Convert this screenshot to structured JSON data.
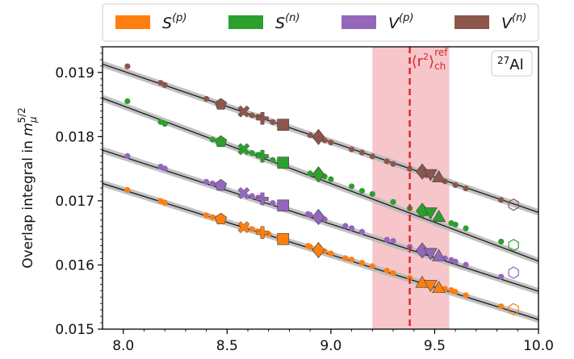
{
  "chart_data": {
    "type": "scatter",
    "title": "",
    "xlabel": "",
    "ylabel": "Overlap integral in m_μ^{5/2}",
    "ylabel_parts": {
      "main": "Overlap integral in ",
      "base": "m",
      "sub": "μ",
      "sup": "5/2"
    },
    "xlim": [
      7.9,
      10.0
    ],
    "ylim": [
      0.015,
      0.0194
    ],
    "xticks": [
      8.0,
      8.5,
      9.0,
      9.5,
      10.0
    ],
    "xtick_labels": [
      "8.0",
      "8.5",
      "9.0",
      "9.5",
      "10.0"
    ],
    "yticks": [
      0.015,
      0.016,
      0.017,
      0.018,
      0.019
    ],
    "ytick_labels": [
      "0.015",
      "0.016",
      "0.017",
      "0.018",
      "0.019"
    ],
    "grid": false,
    "legend_position": "top-outside",
    "nucleus_label": {
      "sup": "27",
      "text": "Al"
    },
    "reference": {
      "x": 9.38,
      "band": [
        9.2,
        9.57
      ],
      "label_base": "⟨r",
      "label_sup": "2",
      "label_close": "⟩",
      "label_sub": "ch",
      "label_sup2": "ref",
      "line_color": "#d62728",
      "band_color": "#f0a0a6"
    },
    "series": [
      {
        "name": "S^(p)",
        "legend_base": "S",
        "legend_sup": "(p)",
        "color": "#ff7f0e",
        "fit": [
          [
            7.9,
            0.01727
          ],
          [
            10.0,
            0.01515
          ]
        ],
        "small_x": [
          8.02,
          8.18,
          8.2,
          8.4,
          8.43,
          8.47,
          8.58,
          8.62,
          8.65,
          8.68,
          8.7,
          8.75,
          8.89,
          8.9,
          8.97,
          9.0,
          9.07,
          9.1,
          9.15,
          9.2,
          9.27,
          9.3,
          9.38,
          9.46,
          9.55,
          9.58,
          9.6,
          9.65,
          9.82
        ],
        "small_y": [
          0.017169,
          0.016998,
          0.016971,
          0.016773,
          0.016744,
          0.016712,
          0.016589,
          0.01656,
          0.016523,
          0.016493,
          0.016483,
          0.016426,
          0.016298,
          0.016284,
          0.016213,
          0.016179,
          0.016107,
          0.016084,
          0.016034,
          0.015982,
          0.015913,
          0.015874,
          0.0158,
          0.015725,
          0.015629,
          0.015609,
          0.015583,
          0.015529,
          0.015355
        ],
        "markers": [
          {
            "shape": "pentagon",
            "x": 8.47,
            "y": 0.016714
          },
          {
            "shape": "x",
            "x": 8.58,
            "y": 0.016589
          },
          {
            "shape": "plus",
            "x": 8.67,
            "y": 0.016505
          },
          {
            "shape": "square",
            "x": 8.77,
            "y": 0.016404
          },
          {
            "shape": "diamond",
            "x": 8.94,
            "y": 0.016232
          },
          {
            "shape": "triangle_up",
            "x": 9.44,
            "y": 0.015726
          },
          {
            "shape": "triangle_down",
            "x": 9.48,
            "y": 0.015685
          },
          {
            "shape": "triangle_up",
            "x": 9.52,
            "y": 0.015645
          },
          {
            "shape": "hexagon",
            "x": 9.88,
            "y": 0.01531,
            "open": true
          }
        ]
      },
      {
        "name": "S^(n)",
        "legend_base": "S",
        "legend_sup": "(n)",
        "color": "#2ca02c",
        "fit": [
          [
            7.9,
            0.0186
          ],
          [
            10.0,
            0.01606
          ]
        ],
        "small_x": [
          8.02,
          8.18,
          8.2,
          8.43,
          8.58,
          8.62,
          8.65,
          8.72,
          8.9,
          8.97,
          9.0,
          9.1,
          9.15,
          9.2,
          9.3,
          9.38,
          9.46,
          9.58,
          9.6,
          9.65,
          9.82
        ],
        "small_y": [
          0.018552,
          0.018228,
          0.018198,
          0.017954,
          0.017805,
          0.017745,
          0.017719,
          0.017635,
          0.017426,
          0.017379,
          0.017337,
          0.017226,
          0.017155,
          0.017106,
          0.016982,
          0.016883,
          0.016805,
          0.016653,
          0.01663,
          0.016571,
          0.016365
        ],
        "markers": [
          {
            "shape": "pentagon",
            "x": 8.47,
            "y": 0.01792
          },
          {
            "shape": "x",
            "x": 8.58,
            "y": 0.017805
          },
          {
            "shape": "plus",
            "x": 8.67,
            "y": 0.017695
          },
          {
            "shape": "square",
            "x": 8.77,
            "y": 0.017594
          },
          {
            "shape": "diamond",
            "x": 8.94,
            "y": 0.017412
          },
          {
            "shape": "diamond",
            "x": 9.44,
            "y": 0.016844
          },
          {
            "shape": "triangle_down",
            "x": 9.48,
            "y": 0.016815
          },
          {
            "shape": "triangle_up",
            "x": 9.52,
            "y": 0.016752
          },
          {
            "shape": "hexagon",
            "x": 9.88,
            "y": 0.01631,
            "open": true
          }
        ]
      },
      {
        "name": "V^(p)",
        "legend_base": "V",
        "legend_sup": "(p)",
        "color": "#9467bd",
        "fit": [
          [
            7.9,
            0.01779
          ],
          [
            10.0,
            0.01559
          ]
        ],
        "small_x": [
          8.02,
          8.18,
          8.2,
          8.4,
          8.43,
          8.58,
          8.62,
          8.65,
          8.72,
          8.89,
          8.9,
          8.97,
          9.07,
          9.1,
          9.15,
          9.27,
          9.3,
          9.38,
          9.55,
          9.58,
          9.6,
          9.65,
          9.82
        ],
        "small_y": [
          0.017698,
          0.017534,
          0.017504,
          0.017296,
          0.017271,
          0.017119,
          0.017075,
          0.017051,
          0.016966,
          0.016794,
          0.01678,
          0.016712,
          0.01661,
          0.016573,
          0.016518,
          0.016394,
          0.016374,
          0.016284,
          0.016104,
          0.016078,
          0.016053,
          0.016004,
          0.015818
        ],
        "markers": [
          {
            "shape": "pentagon",
            "x": 8.47,
            "y": 0.01724
          },
          {
            "shape": "x",
            "x": 8.58,
            "y": 0.017119
          },
          {
            "shape": "plus",
            "x": 8.67,
            "y": 0.017031
          },
          {
            "shape": "square",
            "x": 8.77,
            "y": 0.016926
          },
          {
            "shape": "diamond",
            "x": 8.94,
            "y": 0.016749
          },
          {
            "shape": "diamond",
            "x": 9.44,
            "y": 0.016225
          },
          {
            "shape": "triangle_down",
            "x": 9.48,
            "y": 0.016183
          },
          {
            "shape": "triangle_up",
            "x": 9.52,
            "y": 0.016141
          },
          {
            "shape": "hexagon",
            "x": 9.88,
            "y": 0.01588,
            "open": true
          }
        ]
      },
      {
        "name": "V^(n)",
        "legend_base": "V",
        "legend_sup": "(n)",
        "color": "#8c564b",
        "fit": [
          [
            7.9,
            0.01913
          ],
          [
            10.0,
            0.01682
          ]
        ],
        "small_x": [
          8.02,
          8.18,
          8.2,
          8.4,
          8.58,
          8.62,
          8.65,
          8.72,
          8.9,
          8.97,
          9.0,
          9.1,
          9.15,
          9.2,
          9.27,
          9.3,
          9.38,
          9.46,
          9.55,
          9.6,
          9.65,
          9.82
        ],
        "small_y": [
          0.019096,
          0.018838,
          0.018804,
          0.018589,
          0.018395,
          0.018332,
          0.018312,
          0.018226,
          0.018023,
          0.017941,
          0.017908,
          0.017801,
          0.017752,
          0.017692,
          0.017614,
          0.017574,
          0.017497,
          0.017399,
          0.017303,
          0.017245,
          0.017192,
          0.017013
        ],
        "markers": [
          {
            "shape": "pentagon",
            "x": 8.47,
            "y": 0.018503
          },
          {
            "shape": "x",
            "x": 8.58,
            "y": 0.018392
          },
          {
            "shape": "plus",
            "x": 8.67,
            "y": 0.018284
          },
          {
            "shape": "square",
            "x": 8.77,
            "y": 0.018185
          },
          {
            "shape": "diamond",
            "x": 8.94,
            "y": 0.017995
          },
          {
            "shape": "diamond",
            "x": 9.44,
            "y": 0.017455
          },
          {
            "shape": "triangle_down",
            "x": 9.48,
            "y": 0.017413
          },
          {
            "shape": "triangle_up",
            "x": 9.52,
            "y": 0.01737
          },
          {
            "shape": "hexagon",
            "x": 9.88,
            "y": 0.01694,
            "open": true
          }
        ]
      }
    ]
  }
}
